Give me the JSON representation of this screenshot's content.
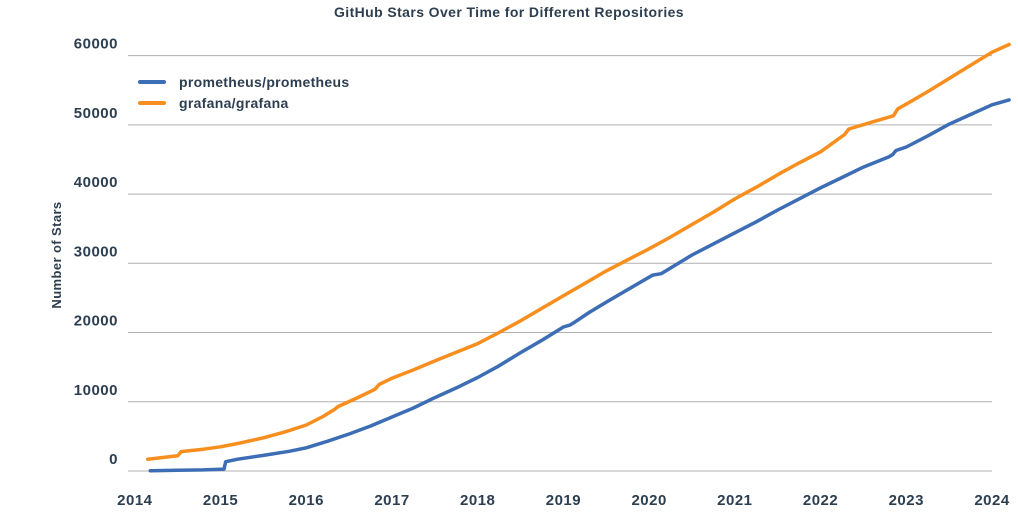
{
  "chart_data": {
    "type": "line",
    "title": "GitHub Stars Over Time for Different Repositories",
    "xlabel": "",
    "ylabel": "Number of Stars",
    "legend_position": "top-left-inside",
    "grid": "horizontal-only",
    "xlim": [
      2013.92,
      2024.21
    ],
    "ylim": [
      0,
      63700
    ],
    "x_ticks": [
      2014,
      2015,
      2016,
      2017,
      2018,
      2019,
      2020,
      2021,
      2022,
      2023,
      2024
    ],
    "x_tick_labels": [
      "2014",
      "2015",
      "2016",
      "2017",
      "2018",
      "2019",
      "2020",
      "2021",
      "2022",
      "2023",
      "2024"
    ],
    "y_ticks": [
      0,
      10000,
      20000,
      30000,
      40000,
      50000,
      60000
    ],
    "y_tick_labels": [
      "0",
      "10000",
      "20000",
      "30000",
      "40000",
      "50000",
      "60000"
    ],
    "colors": {
      "text": "#2c3e50",
      "grid": "#b0b0b0",
      "background": "#ffffff"
    },
    "series": [
      {
        "name": "prometheus/prometheus",
        "color": "#3c6db5",
        "x": [
          2014.18,
          2014.5,
          2014.8,
          2015.04,
          2015.06,
          2015.2,
          2015.5,
          2015.8,
          2016.0,
          2016.25,
          2016.5,
          2016.75,
          2017.0,
          2017.25,
          2017.5,
          2017.75,
          2018.0,
          2018.25,
          2018.5,
          2018.75,
          2019.0,
          2019.08,
          2019.12,
          2019.3,
          2019.5,
          2019.75,
          2020.0,
          2020.04,
          2020.14,
          2020.3,
          2020.5,
          2020.75,
          2021.0,
          2021.25,
          2021.5,
          2021.75,
          2022.0,
          2022.25,
          2022.5,
          2022.8,
          2022.84,
          2022.88,
          2023.0,
          2023.25,
          2023.5,
          2023.75,
          2024.0,
          2024.2
        ],
        "y": [
          50,
          100,
          160,
          280,
          1350,
          1700,
          2250,
          2850,
          3350,
          4300,
          5350,
          6500,
          7800,
          9100,
          10600,
          12000,
          13500,
          15200,
          17100,
          18900,
          20800,
          21100,
          21400,
          22900,
          24400,
          26200,
          28000,
          28300,
          28500,
          29700,
          31200,
          32800,
          34400,
          36000,
          37700,
          39300,
          40900,
          42400,
          43900,
          45400,
          45700,
          46300,
          46800,
          48400,
          50100,
          51500,
          52900,
          53600
        ]
      },
      {
        "name": "grafana/grafana",
        "color": "#f78e1e",
        "x": [
          2014.15,
          2014.3,
          2014.5,
          2014.54,
          2014.8,
          2015.0,
          2015.25,
          2015.5,
          2015.75,
          2016.0,
          2016.2,
          2016.33,
          2016.37,
          2016.6,
          2016.8,
          2016.85,
          2017.0,
          2017.25,
          2017.5,
          2017.75,
          2018.0,
          2018.25,
          2018.5,
          2018.75,
          2019.0,
          2019.25,
          2019.5,
          2019.75,
          2020.0,
          2020.25,
          2020.5,
          2020.75,
          2021.0,
          2021.25,
          2021.5,
          2021.75,
          2022.0,
          2022.28,
          2022.33,
          2022.6,
          2022.85,
          2022.9,
          2023.0,
          2023.25,
          2023.5,
          2023.75,
          2024.0,
          2024.2
        ],
        "y": [
          1700,
          1900,
          2200,
          2800,
          3150,
          3500,
          4100,
          4800,
          5650,
          6650,
          7900,
          8900,
          9300,
          10600,
          11800,
          12500,
          13400,
          14600,
          15900,
          17150,
          18400,
          20000,
          21700,
          23500,
          25300,
          27100,
          28900,
          30500,
          32100,
          33800,
          35600,
          37400,
          39300,
          41000,
          42800,
          44500,
          46100,
          48600,
          49400,
          50400,
          51300,
          52300,
          53000,
          54800,
          56700,
          58600,
          60500,
          61600
        ]
      }
    ]
  }
}
